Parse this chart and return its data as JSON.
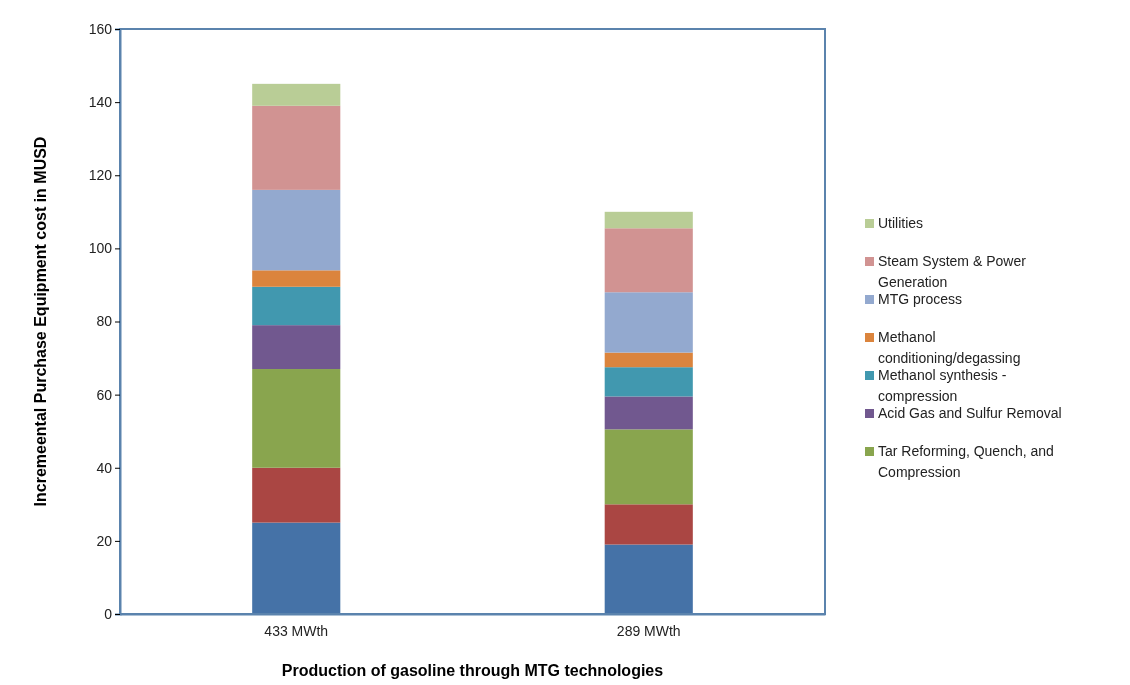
{
  "chart_data": {
    "type": "bar",
    "stacked": true,
    "xlabel": "Production of gasoline through MTG technologies",
    "ylabel": "Incremeental Purchase Equipment cost in MUSD",
    "categories": [
      "433 MWth",
      "289 MWth"
    ],
    "series": [
      {
        "color": "#4572a7",
        "values": [
          25,
          19
        ]
      },
      {
        "color": "#aa4643",
        "values": [
          15,
          11
        ]
      },
      {
        "name": "Tar Reforming, Quench, and Compression",
        "color": "#89a54e",
        "values": [
          27,
          20.5
        ]
      },
      {
        "name": "Acid Gas and Sulfur Removal",
        "color": "#71588f",
        "values": [
          12,
          9
        ]
      },
      {
        "name": "Methanol synthesis - compression",
        "color": "#4198af",
        "values": [
          10.5,
          8
        ]
      },
      {
        "name": "Methanol conditioning/degassing",
        "color": "#db843d",
        "values": [
          4.5,
          4
        ]
      },
      {
        "name": "MTG process",
        "color": "#93a9cf",
        "values": [
          22,
          16.5
        ]
      },
      {
        "name": "Steam System & Power Generation",
        "color": "#d19392",
        "values": [
          23,
          17.5
        ]
      },
      {
        "name": "Utilities",
        "color": "#b9cd96",
        "values": [
          6,
          4.5
        ]
      }
    ],
    "ylim": [
      0,
      160
    ],
    "yticks": [
      0,
      20,
      40,
      60,
      80,
      100,
      120,
      140,
      160
    ],
    "grid": false,
    "legend": "right"
  }
}
